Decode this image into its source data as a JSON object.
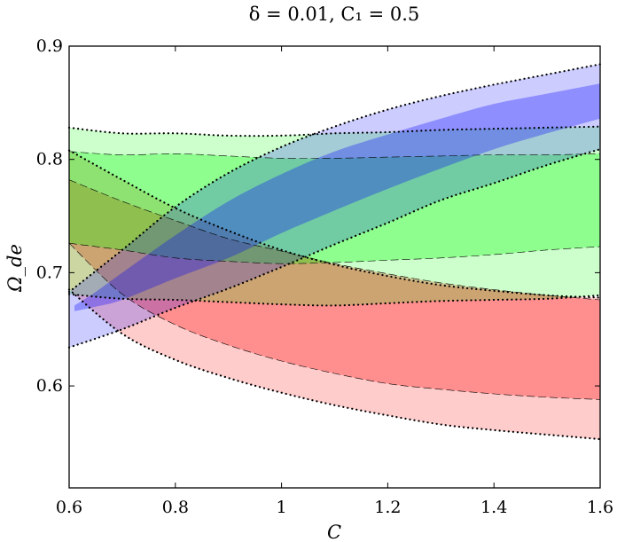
{
  "chart_data": {
    "type": "area",
    "title": "δ = 0.01, C₁ = 0.5",
    "xlabel": "C",
    "ylabel": "Ω_de",
    "xlim": [
      0.6,
      1.6
    ],
    "ylim": [
      0.51,
      0.9
    ],
    "xticks": [
      0.6,
      0.8,
      1.0,
      1.2,
      1.4,
      1.6
    ],
    "xtick_labels": [
      "0.6",
      "0.8",
      "1",
      "1.2",
      "1.4",
      "1.6"
    ],
    "yticks": [
      0.6,
      0.7,
      0.8,
      0.9
    ],
    "ytick_labels": [
      "0.6",
      "0.7",
      "0.8",
      "0.9"
    ],
    "grid": false,
    "legend": "none",
    "colors": {
      "red": "#ff0000",
      "green": "#00ff00",
      "blue": "#0000ff"
    },
    "series": [
      {
        "color_key": "red",
        "outer": {
          "x": [
            0.6,
            0.7,
            0.8,
            0.9,
            1.0,
            1.1,
            1.2,
            1.3,
            1.4,
            1.5,
            1.6
          ],
          "upper": [
            0.808,
            0.782,
            0.757,
            0.737,
            0.72,
            0.707,
            0.697,
            0.689,
            0.684,
            0.68,
            0.678
          ],
          "lower": [
            0.685,
            0.646,
            0.623,
            0.607,
            0.594,
            0.583,
            0.574,
            0.566,
            0.561,
            0.557,
            0.553
          ]
        },
        "inner": {
          "x": [
            0.6,
            0.7,
            0.8,
            0.9,
            1.0,
            1.1,
            1.2,
            1.3,
            1.4,
            1.5,
            1.6
          ],
          "upper": [
            0.782,
            0.763,
            0.746,
            0.73,
            0.719,
            0.708,
            0.699,
            0.691,
            0.685,
            0.68,
            0.676
          ],
          "lower": [
            0.726,
            0.681,
            0.654,
            0.636,
            0.622,
            0.611,
            0.602,
            0.597,
            0.593,
            0.59,
            0.588
          ]
        }
      },
      {
        "color_key": "green",
        "outer": {
          "x": [
            0.6,
            0.7,
            0.8,
            0.9,
            1.0,
            1.1,
            1.2,
            1.3,
            1.4,
            1.5,
            1.6
          ],
          "upper": [
            0.828,
            0.823,
            0.823,
            0.821,
            0.821,
            0.823,
            0.824,
            0.826,
            0.827,
            0.828,
            0.829
          ],
          "lower": [
            0.681,
            0.677,
            0.676,
            0.674,
            0.672,
            0.671,
            0.673,
            0.675,
            0.676,
            0.677,
            0.68
          ]
        },
        "inner": {
          "x": [
            0.6,
            0.7,
            0.8,
            0.9,
            1.0,
            1.1,
            1.2,
            1.3,
            1.4,
            1.5,
            1.6
          ],
          "upper": [
            0.807,
            0.804,
            0.805,
            0.803,
            0.801,
            0.801,
            0.802,
            0.803,
            0.804,
            0.804,
            0.805
          ],
          "lower": [
            0.726,
            0.72,
            0.713,
            0.71,
            0.708,
            0.709,
            0.711,
            0.713,
            0.716,
            0.72,
            0.723
          ]
        }
      },
      {
        "color_key": "blue",
        "outer": {
          "x": [
            0.6,
            0.7,
            0.8,
            0.9,
            1.0,
            1.1,
            1.2,
            1.3,
            1.4,
            1.5,
            1.6
          ],
          "upper": [
            0.683,
            0.72,
            0.758,
            0.788,
            0.811,
            0.829,
            0.844,
            0.856,
            0.866,
            0.875,
            0.884
          ],
          "lower": [
            0.634,
            0.65,
            0.669,
            0.686,
            0.705,
            0.725,
            0.744,
            0.764,
            0.779,
            0.795,
            0.809
          ]
        },
        "inner": {
          "x": [
            0.61,
            0.65,
            0.7,
            0.8,
            0.9,
            1.0,
            1.1,
            1.2,
            1.3,
            1.4,
            1.5,
            1.6
          ],
          "upper": [
            0.671,
            0.683,
            0.7,
            0.733,
            0.763,
            0.787,
            0.807,
            0.822,
            0.836,
            0.849,
            0.858,
            0.867
          ],
          "lower": [
            0.666,
            0.67,
            0.676,
            0.695,
            0.713,
            0.735,
            0.755,
            0.774,
            0.792,
            0.809,
            0.823,
            0.836
          ]
        }
      }
    ]
  }
}
